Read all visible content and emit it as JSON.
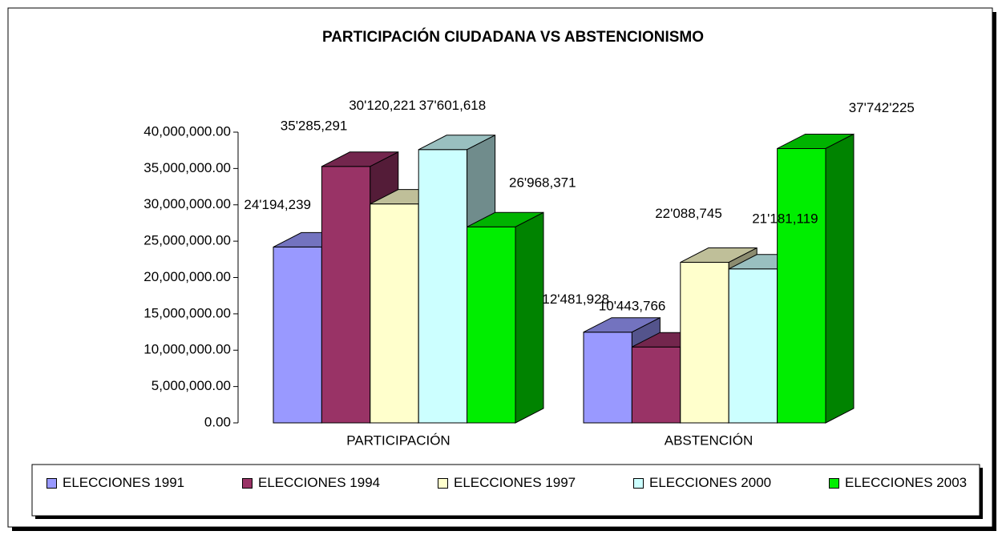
{
  "chart_data": {
    "type": "bar3d",
    "title": "PARTICIPACIÓN CIUDADANA VS ABSTENCIONISMO",
    "categories": [
      "PARTICIPACIÓN",
      "ABSTENCIÓN"
    ],
    "series": [
      {
        "name": "ELECCIONES 1991",
        "color": "#9999ff",
        "values": [
          24194239,
          12481928
        ],
        "value_labels": [
          "24'194,239",
          "12'481,928"
        ]
      },
      {
        "name": "ELECCIONES 1994",
        "color": "#993366",
        "values": [
          35285291,
          10443766
        ],
        "value_labels": [
          "35'285,291",
          "10'443,766"
        ]
      },
      {
        "name": "ELECCIONES 1997",
        "color": "#ffffcc",
        "values": [
          30120221,
          22088745
        ],
        "value_labels": [
          "30'120,221",
          "22'088,745"
        ]
      },
      {
        "name": "ELECCIONES 2000",
        "color": "#ccffff",
        "values": [
          37601618,
          21181119
        ],
        "value_labels": [
          "37'601,618",
          "21'181,119"
        ]
      },
      {
        "name": "ELECCIONES 2003",
        "color": "#00ee00",
        "values": [
          26968371,
          37742225
        ],
        "value_labels": [
          "26'968,371",
          "37'742'225"
        ]
      }
    ],
    "ylim": [
      0,
      40000000
    ],
    "yticks": [
      {
        "value": 0,
        "label": "0.00"
      },
      {
        "value": 5000000,
        "label": "5,000,000.00"
      },
      {
        "value": 10000000,
        "label": "10,000,000.00"
      },
      {
        "value": 15000000,
        "label": "15,000,000.00"
      },
      {
        "value": 20000000,
        "label": "20,000,000.00"
      },
      {
        "value": 25000000,
        "label": "25,000,000.00"
      },
      {
        "value": 30000000,
        "label": "30,000,000.00"
      },
      {
        "value": 35000000,
        "label": "35,000,000.00"
      },
      {
        "value": 40000000,
        "label": "40,000,000.00"
      }
    ],
    "legend": "bottom"
  }
}
